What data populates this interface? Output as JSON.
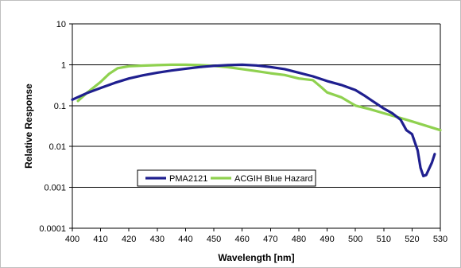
{
  "chart_data": {
    "type": "line",
    "title": "",
    "xlabel": "Wavelength [nm]",
    "ylabel": "Relative Response",
    "xlim": [
      400,
      530
    ],
    "ylim": [
      0.0001,
      10
    ],
    "yscale": "log",
    "grid": "horizontal",
    "legend_position": "lower-left",
    "x_ticks": [
      "400",
      "410",
      "420",
      "430",
      "440",
      "450",
      "460",
      "470",
      "480",
      "490",
      "500",
      "510",
      "520",
      "530"
    ],
    "y_ticks": [
      "10",
      "1",
      "0.1",
      "0.01",
      "0.001",
      "0.0001"
    ],
    "series": [
      {
        "name": "PMA2121",
        "color": "#1f1f8f",
        "points": [
          [
            400,
            0.14
          ],
          [
            405,
            0.2
          ],
          [
            410,
            0.27
          ],
          [
            415,
            0.36
          ],
          [
            420,
            0.46
          ],
          [
            425,
            0.55
          ],
          [
            430,
            0.64
          ],
          [
            435,
            0.72
          ],
          [
            440,
            0.8
          ],
          [
            445,
            0.88
          ],
          [
            450,
            0.94
          ],
          [
            455,
            0.98
          ],
          [
            460,
            1.0
          ],
          [
            465,
            0.96
          ],
          [
            470,
            0.88
          ],
          [
            475,
            0.78
          ],
          [
            480,
            0.64
          ],
          [
            485,
            0.52
          ],
          [
            490,
            0.4
          ],
          [
            495,
            0.32
          ],
          [
            500,
            0.24
          ],
          [
            503,
            0.18
          ],
          [
            506,
            0.13
          ],
          [
            510,
            0.085
          ],
          [
            513,
            0.065
          ],
          [
            516,
            0.045
          ],
          [
            518,
            0.025
          ],
          [
            520,
            0.02
          ],
          [
            522,
            0.008
          ],
          [
            523,
            0.003
          ],
          [
            524,
            0.0019
          ],
          [
            525,
            0.002
          ],
          [
            527,
            0.004
          ],
          [
            528,
            0.0065
          ]
        ]
      },
      {
        "name": "ACGIH Blue Hazard",
        "color": "#8fd14f",
        "points": [
          [
            402,
            0.13
          ],
          [
            405,
            0.2
          ],
          [
            410,
            0.38
          ],
          [
            413,
            0.6
          ],
          [
            416,
            0.82
          ],
          [
            420,
            0.92
          ],
          [
            425,
            0.95
          ],
          [
            430,
            0.98
          ],
          [
            435,
            1.0
          ],
          [
            440,
            1.0
          ],
          [
            445,
            0.98
          ],
          [
            450,
            0.94
          ],
          [
            455,
            0.87
          ],
          [
            460,
            0.78
          ],
          [
            465,
            0.7
          ],
          [
            470,
            0.62
          ],
          [
            475,
            0.56
          ],
          [
            480,
            0.46
          ],
          [
            485,
            0.42
          ],
          [
            488,
            0.28
          ],
          [
            490,
            0.21
          ],
          [
            495,
            0.16
          ],
          [
            500,
            0.1
          ],
          [
            505,
            0.082
          ],
          [
            510,
            0.065
          ],
          [
            515,
            0.052
          ],
          [
            520,
            0.041
          ],
          [
            525,
            0.032
          ],
          [
            530,
            0.025
          ]
        ]
      }
    ]
  }
}
